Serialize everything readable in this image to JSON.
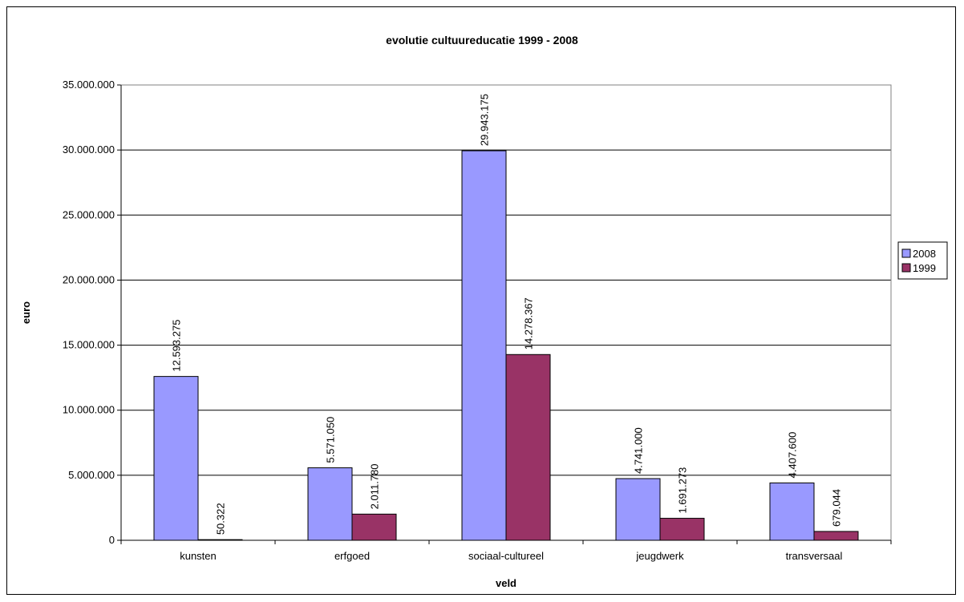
{
  "chart_data": {
    "type": "bar",
    "title": "evolutie cultuureducatie 1999 - 2008",
    "xlabel": "veld",
    "ylabel": "euro",
    "ylim": [
      0,
      35000000
    ],
    "ytick_step": 5000000,
    "ytick_labels": [
      "0",
      "5.000.000",
      "10.000.000",
      "15.000.000",
      "20.000.000",
      "25.000.000",
      "30.000.000",
      "35.000.000"
    ],
    "categories": [
      "kunsten",
      "erfgoed",
      "sociaal-cultureel",
      "jeugdwerk",
      "transversaal"
    ],
    "series": [
      {
        "name": "2008",
        "color": "#9999ff",
        "values": [
          12593275,
          5571050,
          29943175,
          4741000,
          4407600
        ],
        "labels": [
          "12.593.275",
          "5.571.050",
          "29.943.175",
          "4.741.000",
          "4.407.600"
        ]
      },
      {
        "name": "1999",
        "color": "#993366",
        "values": [
          50322,
          2011780,
          14278367,
          1691273,
          679044
        ],
        "labels": [
          "50.322",
          "2.011.780",
          "14.278.367",
          "1.691.273",
          "679.044"
        ]
      }
    ],
    "grid": true,
    "legend": "right"
  }
}
